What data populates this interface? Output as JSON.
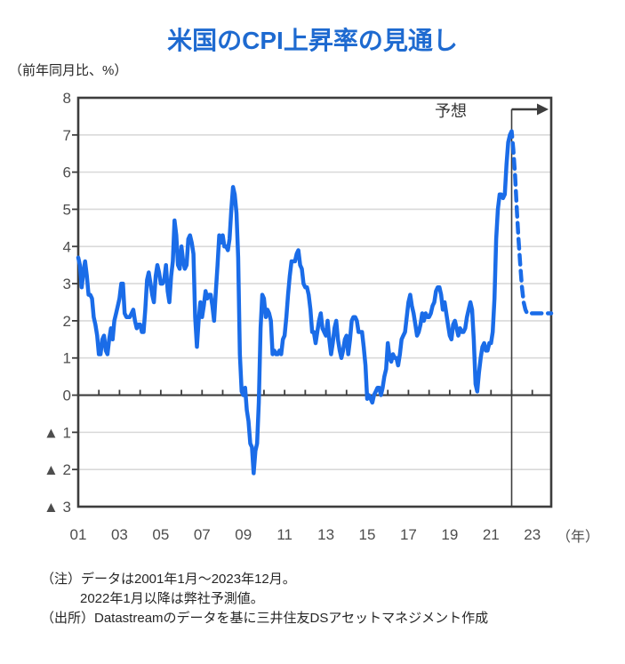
{
  "chart_data": {
    "type": "line",
    "title": "米国のCPI上昇率の見通し",
    "y_unit_label": "（前年同月比、%）",
    "x_unit_label": "（年）",
    "forecast_label": "予想",
    "ylim": [
      -3,
      8
    ],
    "grid": true,
    "x_start": "2001-01",
    "x_end": "2023-12",
    "forecast_start": "2022-01",
    "x_tick_labels": [
      "01",
      "03",
      "05",
      "07",
      "09",
      "11",
      "13",
      "15",
      "17",
      "19",
      "21",
      "23"
    ],
    "y_tick_labels": [
      "8",
      "7",
      "6",
      "5",
      "4",
      "3",
      "2",
      "1",
      "0",
      "▲ 1",
      "▲ 2",
      "▲ 3"
    ],
    "series": [
      {
        "id": "actual-cpi-yoy",
        "style": "solid",
        "start": "2001-01",
        "values": [
          3.7,
          3.5,
          2.9,
          3.3,
          3.6,
          3.2,
          2.7,
          2.7,
          2.6,
          2.1,
          1.9,
          1.6,
          1.1,
          1.1,
          1.5,
          1.6,
          1.2,
          1.1,
          1.5,
          1.8,
          1.5,
          2.0,
          2.2,
          2.4,
          2.6,
          3.0,
          3.0,
          2.2,
          2.1,
          2.1,
          2.1,
          2.2,
          2.3,
          2.0,
          1.8,
          1.9,
          1.9,
          1.7,
          1.7,
          2.3,
          3.1,
          3.3,
          3.0,
          2.7,
          2.5,
          3.2,
          3.5,
          3.3,
          3.0,
          3.0,
          3.1,
          3.5,
          2.8,
          2.5,
          3.2,
          3.6,
          4.7,
          4.3,
          3.5,
          3.4,
          4.0,
          3.6,
          3.4,
          3.5,
          4.2,
          4.3,
          4.1,
          3.8,
          2.1,
          1.3,
          2.0,
          2.5,
          2.1,
          2.4,
          2.8,
          2.6,
          2.7,
          2.7,
          2.4,
          2.0,
          2.8,
          3.5,
          4.3,
          4.1,
          4.3,
          4.0,
          4.0,
          3.9,
          4.2,
          5.0,
          5.6,
          5.4,
          4.9,
          3.7,
          1.1,
          0.1,
          0.0,
          0.2,
          -0.4,
          -0.7,
          -1.3,
          -1.4,
          -2.1,
          -1.5,
          -1.3,
          -0.2,
          1.8,
          2.7,
          2.6,
          2.1,
          2.3,
          2.2,
          2.0,
          1.1,
          1.2,
          1.1,
          1.1,
          1.2,
          1.1,
          1.5,
          1.6,
          2.1,
          2.7,
          3.2,
          3.6,
          3.6,
          3.6,
          3.8,
          3.9,
          3.5,
          3.4,
          3.0,
          2.9,
          2.9,
          2.7,
          2.3,
          1.7,
          1.7,
          1.4,
          1.7,
          2.0,
          2.2,
          1.8,
          1.7,
          1.6,
          2.0,
          1.5,
          1.1,
          1.4,
          1.8,
          2.0,
          1.5,
          1.2,
          1.0,
          1.2,
          1.5,
          1.6,
          1.1,
          1.5,
          2.0,
          2.1,
          2.1,
          2.0,
          1.7,
          1.7,
          1.7,
          1.3,
          0.8,
          -0.1,
          0.0,
          -0.1,
          -0.2,
          0.0,
          0.1,
          0.2,
          0.2,
          0.0,
          0.2,
          0.5,
          0.7,
          1.4,
          1.0,
          0.9,
          1.1,
          1.0,
          1.0,
          0.8,
          1.1,
          1.5,
          1.6,
          1.7,
          2.1,
          2.5,
          2.7,
          2.4,
          2.2,
          1.9,
          1.6,
          1.7,
          1.9,
          2.2,
          2.0,
          2.2,
          2.1,
          2.1,
          2.2,
          2.4,
          2.5,
          2.8,
          2.9,
          2.9,
          2.7,
          2.3,
          2.5,
          2.2,
          1.9,
          1.6,
          1.5,
          1.9,
          2.0,
          1.8,
          1.6,
          1.8,
          1.7,
          1.7,
          1.8,
          2.1,
          2.3,
          2.5,
          2.3,
          1.5,
          0.3,
          0.1,
          0.6,
          1.0,
          1.3,
          1.4,
          1.2,
          1.2,
          1.4,
          1.4,
          1.7,
          2.6,
          4.2,
          5.0,
          5.4,
          5.4,
          5.3,
          5.4,
          6.2,
          6.8,
          7.0
        ]
      },
      {
        "id": "forecast-cpi-yoy",
        "style": "dashed",
        "start": "2022-01",
        "values": [
          7.1,
          6.6,
          5.9,
          5.0,
          4.2,
          3.5,
          2.9,
          2.5,
          2.3,
          2.2,
          2.2,
          2.2,
          2.2,
          2.2,
          2.2,
          2.2,
          2.2,
          2.2,
          2.2,
          2.2,
          2.2,
          2.2,
          2.2,
          2.2
        ]
      }
    ],
    "colors": {
      "title": "#1e6ad0",
      "line": "#1a6ce8",
      "grid": "#d9d9d9",
      "axis": "#3d3d3d",
      "tick_text": "#4d4d4d"
    }
  },
  "notes": {
    "line1": "（注）データは2001年1月～2023年12月。",
    "line2": "2022年1月以降は弊社予測値。",
    "line3": "（出所）Datastreamのデータを基に三井住友DSアセットマネジメント作成"
  }
}
